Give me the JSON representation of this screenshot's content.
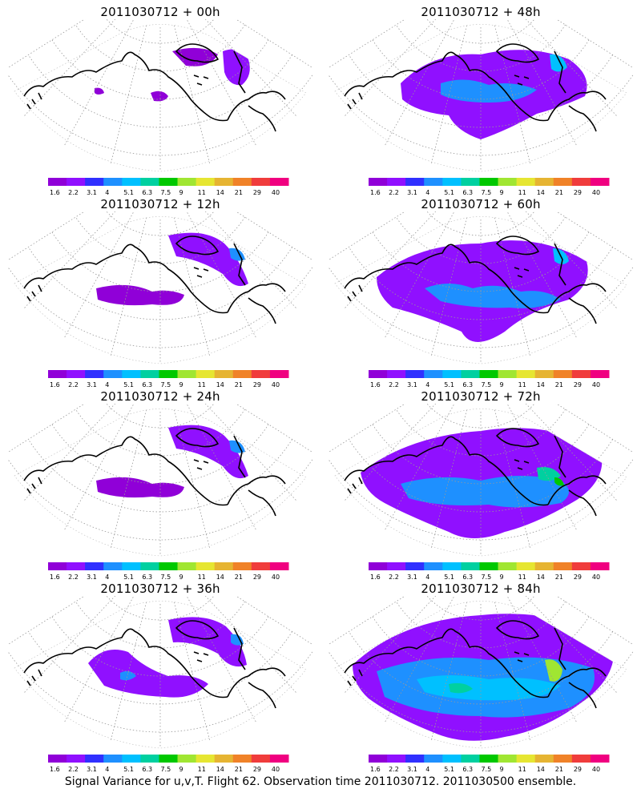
{
  "panels": [
    {
      "title": "2011030712 + 00h",
      "level": 0
    },
    {
      "title": "2011030712 + 48h",
      "level": 3
    },
    {
      "title": "2011030712 + 12h",
      "level": 1
    },
    {
      "title": "2011030712 + 60h",
      "level": 4
    },
    {
      "title": "2011030712 + 24h",
      "level": 1
    },
    {
      "title": "2011030712 + 72h",
      "level": 5
    },
    {
      "title": "2011030712 + 36h",
      "level": 2
    },
    {
      "title": "2011030712 + 84h",
      "level": 6
    }
  ],
  "colorbar": {
    "labels": [
      "1.6",
      "2.2",
      "3.1",
      "4",
      "5.1",
      "6.3",
      "7.5",
      "9",
      "11",
      "14",
      "21",
      "29",
      "40"
    ],
    "colors": [
      "#9000d8",
      "#9010ff",
      "#3030ff",
      "#1e90ff",
      "#00c0ff",
      "#00d0a0",
      "#00c800",
      "#a0e632",
      "#e6e632",
      "#e6b432",
      "#f08228",
      "#f03c3c",
      "#f00080"
    ]
  },
  "footer": {
    "caption": "Signal Variance for u,v,T. Flight 62. Observation time 2011030712. 2011030500 ensemble."
  }
}
